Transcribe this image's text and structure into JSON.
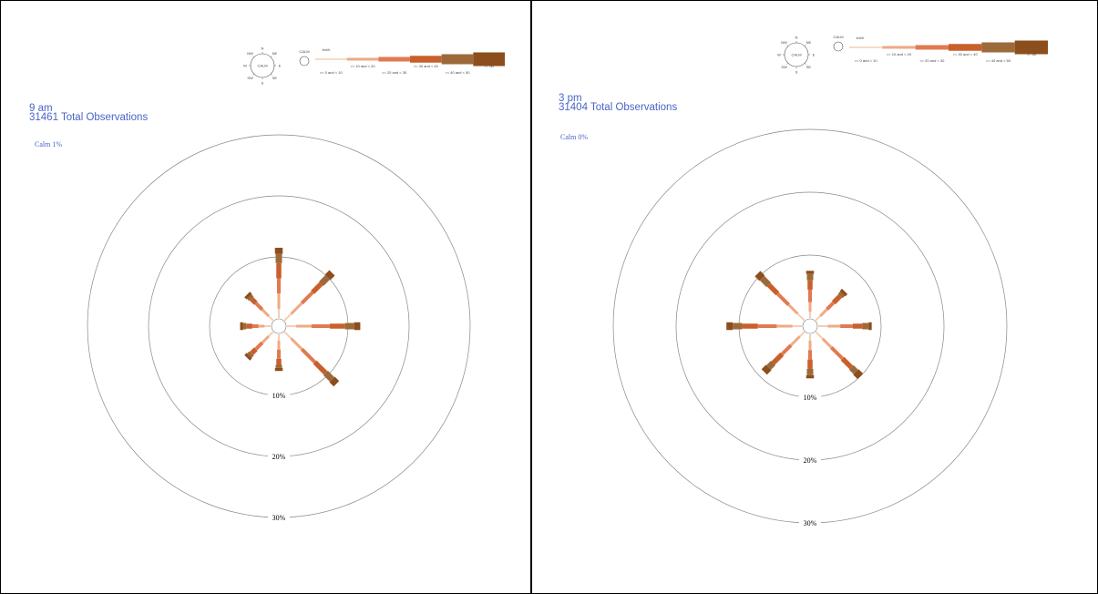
{
  "colors": {
    "title": "#4a64c8",
    "bins": [
      "#f2cfb4",
      "#eeaa85",
      "#e07a50",
      "#c8602c",
      "#9c6a3a",
      "#8c4e1c"
    ],
    "ring": "#888888"
  },
  "legend": {
    "compass_center": "CALM",
    "compass_dirs": [
      "N",
      "NE",
      "E",
      "SE",
      "S",
      "SW",
      "W",
      "NW"
    ],
    "calm_label": "CALM",
    "unit": "km/h",
    "bins": [
      ">= 0 and < 10",
      ">= 10 and < 20",
      ">= 20 and < 30",
      ">= 30 and < 40",
      ">= 40 and < 50",
      ">= 50"
    ]
  },
  "chart_data": [
    {
      "type": "wind-rose",
      "title": "9 am",
      "subtitle": "31461 Total Observations",
      "calm": "Calm 1%",
      "rings": [
        10,
        20,
        30
      ],
      "ring_labels": [
        "10%",
        "20%",
        "30%"
      ],
      "directions": [
        "N",
        "NE",
        "E",
        "SE",
        "S",
        "SW",
        "W",
        "NW"
      ],
      "series": [
        {
          "dir": "N",
          "values": [
            1.5,
            2.5,
            2.5,
            2.5,
            1.5,
            1.0
          ]
        },
        {
          "dir": "NE",
          "values": [
            1.5,
            2.5,
            2.5,
            2.0,
            1.5,
            1.0
          ]
        },
        {
          "dir": "E",
          "values": [
            1.5,
            2.5,
            3.0,
            2.5,
            1.5,
            1.0
          ]
        },
        {
          "dir": "SE",
          "values": [
            1.5,
            2.5,
            3.0,
            2.5,
            1.5,
            1.0
          ]
        },
        {
          "dir": "S",
          "values": [
            1.0,
            1.5,
            1.5,
            1.0,
            0.5,
            0.5
          ]
        },
        {
          "dir": "SW",
          "values": [
            1.0,
            1.5,
            1.5,
            1.0,
            0.5,
            0.5
          ]
        },
        {
          "dir": "W",
          "values": [
            1.0,
            1.0,
            1.0,
            1.0,
            0.5,
            0.5
          ]
        },
        {
          "dir": "NW",
          "values": [
            1.0,
            1.5,
            1.5,
            1.0,
            0.5,
            0.5
          ]
        }
      ]
    },
    {
      "type": "wind-rose",
      "title": "3 pm",
      "subtitle": "31404 Total Observations",
      "calm": "Calm 0%",
      "rings": [
        10,
        20,
        30
      ],
      "ring_labels": [
        "10%",
        "20%",
        "30%"
      ],
      "directions": [
        "N",
        "NE",
        "E",
        "SE",
        "S",
        "SW",
        "W",
        "NW"
      ],
      "series": [
        {
          "dir": "N",
          "values": [
            1.0,
            1.5,
            2.0,
            1.5,
            1.0,
            0.5
          ]
        },
        {
          "dir": "NE",
          "values": [
            1.0,
            1.5,
            1.5,
            1.5,
            0.5,
            0.5
          ]
        },
        {
          "dir": "E",
          "values": [
            1.5,
            2.0,
            2.0,
            1.5,
            1.0,
            0.5
          ]
        },
        {
          "dir": "SE",
          "values": [
            1.5,
            2.0,
            2.5,
            2.0,
            1.0,
            1.0
          ]
        },
        {
          "dir": "S",
          "values": [
            1.0,
            1.5,
            1.5,
            1.5,
            1.0,
            0.5
          ]
        },
        {
          "dir": "SW",
          "values": [
            1.0,
            2.0,
            2.0,
            2.0,
            1.0,
            1.0
          ]
        },
        {
          "dir": "W",
          "values": [
            1.5,
            2.5,
            3.0,
            2.5,
            1.5,
            1.0
          ]
        },
        {
          "dir": "NW",
          "values": [
            1.5,
            2.0,
            2.5,
            2.0,
            1.5,
            1.0
          ]
        }
      ]
    }
  ]
}
